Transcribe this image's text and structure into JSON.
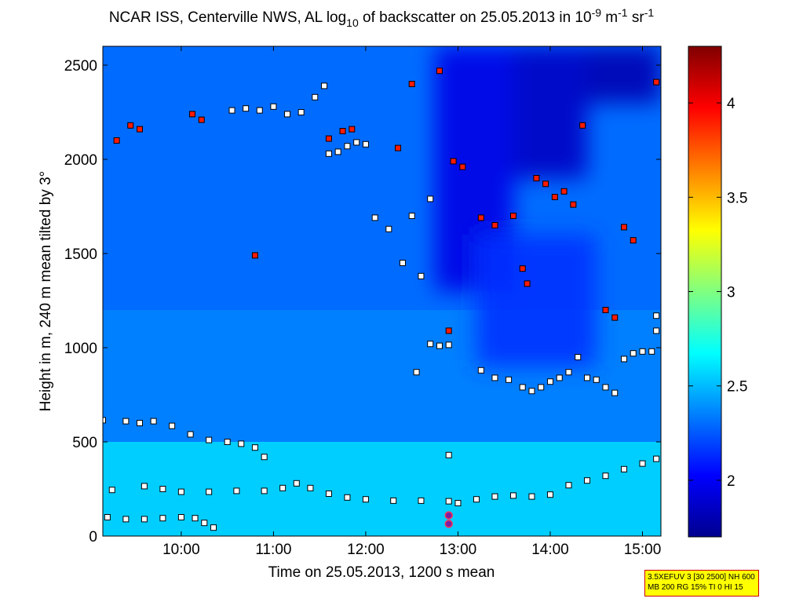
{
  "chart_data": {
    "type": "heatmap",
    "title": {
      "prefix": "NCAR ISS, Centerville NWS, AL log",
      "sub": "10",
      "mid": " of backscatter on 25.05.2013 in 10",
      "sup1": "-9",
      "mid2": " m",
      "sup2": "-1",
      "mid3": " sr",
      "sup3": "-1"
    },
    "xlabel": "Time on 25.05.2013, 1200 s mean",
    "ylabel": "Height in m, 240 m mean tilted by 3°",
    "xlim": [
      9.15,
      15.2
    ],
    "ylim": [
      0,
      2600
    ],
    "x_ticks": [
      {
        "value": 10,
        "label": "10:00"
      },
      {
        "value": 11,
        "label": "11:00"
      },
      {
        "value": 12,
        "label": "12:00"
      },
      {
        "value": 13,
        "label": "13:00"
      },
      {
        "value": 14,
        "label": "14:00"
      },
      {
        "value": 15,
        "label": "15:00"
      }
    ],
    "y_ticks": [
      {
        "value": 0,
        "label": "0"
      },
      {
        "value": 500,
        "label": "500"
      },
      {
        "value": 1000,
        "label": "1000"
      },
      {
        "value": 1500,
        "label": "1500"
      },
      {
        "value": 2000,
        "label": "2000"
      },
      {
        "value": 2500,
        "label": "2500"
      }
    ],
    "colorbar": {
      "range": [
        1.7,
        4.3
      ],
      "ticks": [
        {
          "value": 2,
          "label": "2"
        },
        {
          "value": 2.5,
          "label": "2.5"
        },
        {
          "value": 3,
          "label": "3"
        },
        {
          "value": 3.5,
          "label": "3.5"
        },
        {
          "value": 4,
          "label": "4"
        }
      ],
      "colors": [
        "#00008f",
        "#0000ff",
        "#0080ff",
        "#00ffff",
        "#80ff80",
        "#ffff00",
        "#ff8000",
        "#ff0000",
        "#800000"
      ]
    },
    "background_levels": [
      {
        "h_min": 0,
        "h_max": 500,
        "value": 2.55
      },
      {
        "h_min": 500,
        "h_max": 1200,
        "value": 2.35
      },
      {
        "h_min": 1200,
        "h_max": 2600,
        "value": 2.3
      }
    ],
    "low_backscatter_regions": [
      {
        "t_start": 12.75,
        "t_end": 13.6,
        "h_start": 1300,
        "h_end": 2600,
        "value": 1.95
      },
      {
        "t_start": 13.6,
        "t_end": 14.4,
        "h_start": 1900,
        "h_end": 2600,
        "value": 1.85
      },
      {
        "t_start": 14.4,
        "t_end": 15.2,
        "h_start": 2300,
        "h_end": 2600,
        "value": 1.8
      },
      {
        "t_start": 13.2,
        "t_end": 14.5,
        "h_start": 900,
        "h_end": 1600,
        "value": 2.15
      }
    ],
    "series": [
      {
        "name": "layer-1",
        "marker": "white-square",
        "x": [
          9.2,
          9.4,
          9.6,
          9.8,
          10.0,
          10.15,
          10.25,
          10.35
        ],
        "y": [
          100,
          90,
          90,
          95,
          100,
          95,
          70,
          45
        ]
      },
      {
        "name": "layer-2",
        "marker": "white-square",
        "x": [
          9.6,
          9.8,
          10.0,
          10.3,
          10.6,
          10.9,
          11.1,
          11.25,
          11.4,
          11.6,
          11.8,
          12.0,
          12.3,
          12.6,
          12.9,
          13.0,
          13.2,
          13.4,
          13.6,
          13.8,
          14.0,
          14.2,
          14.4,
          14.6,
          14.8,
          15.0,
          15.15
        ],
        "y": [
          265,
          250,
          235,
          235,
          240,
          240,
          255,
          280,
          255,
          225,
          205,
          195,
          188,
          188,
          185,
          175,
          195,
          210,
          215,
          210,
          220,
          270,
          295,
          320,
          355,
          385,
          410
        ]
      },
      {
        "name": "layer-3",
        "marker": "white-square",
        "x": [
          9.15,
          9.4,
          9.55,
          9.7,
          9.9,
          10.1,
          10.3,
          10.5,
          10.65,
          10.8,
          10.9
        ],
        "y": [
          615,
          610,
          600,
          610,
          585,
          540,
          510,
          500,
          490,
          470,
          420
        ]
      },
      {
        "name": "layer-4",
        "marker": "white-square",
        "x": [
          13.25,
          13.4,
          13.55,
          13.7,
          13.8,
          13.9,
          14.0,
          14.1,
          14.2,
          14.3,
          14.4,
          14.5,
          14.6,
          14.7
        ],
        "y": [
          880,
          840,
          830,
          790,
          770,
          790,
          820,
          840,
          870,
          950,
          840,
          830,
          790,
          760
        ]
      },
      {
        "name": "layer-5",
        "marker": "white-square",
        "x": [
          14.8,
          14.9,
          15.0,
          15.1
        ],
        "y": [
          940,
          970,
          980,
          980
        ]
      },
      {
        "name": "layer-6",
        "marker": "white-square",
        "x": [
          12.7,
          12.8,
          12.9
        ],
        "y": [
          1020,
          1010,
          1015
        ]
      },
      {
        "name": "layer-7",
        "marker": "white-square",
        "x": [
          10.55,
          10.7,
          10.85,
          11.0,
          11.15,
          11.3,
          11.45,
          11.55
        ],
        "y": [
          2260,
          2270,
          2260,
          2280,
          2240,
          2250,
          2330,
          2390
        ]
      },
      {
        "name": "layer-8",
        "marker": "white-square",
        "x": [
          11.6,
          11.7,
          11.8,
          11.9,
          12.0
        ],
        "y": [
          2030,
          2040,
          2070,
          2090,
          2080
        ]
      },
      {
        "name": "isolated-white",
        "marker": "white-square",
        "x": [
          9.25,
          12.1,
          12.25,
          12.4,
          12.5,
          12.55,
          12.6,
          12.7,
          12.9,
          15.15,
          15.15
        ],
        "y": [
          245,
          1690,
          1630,
          1450,
          1700,
          870,
          1380,
          1790,
          430,
          1170,
          1090
        ]
      },
      {
        "name": "cloud-edges-red",
        "marker": "red-square",
        "x": [
          9.3,
          9.45,
          9.55,
          10.12,
          10.22,
          10.8,
          11.6,
          11.75,
          11.85,
          12.35,
          12.5,
          12.8,
          12.9,
          12.95,
          13.05,
          13.25,
          13.4,
          13.6,
          13.7,
          13.75,
          13.85,
          13.95,
          14.05,
          14.15,
          14.25,
          14.35,
          14.6,
          14.7,
          14.8,
          14.9,
          15.15
        ],
        "y": [
          2100,
          2180,
          2160,
          2240,
          2210,
          1490,
          2110,
          2150,
          2160,
          2060,
          2400,
          2470,
          1090,
          1990,
          1960,
          1690,
          1650,
          1700,
          1420,
          1340,
          1900,
          1870,
          1800,
          1830,
          1760,
          2180,
          1200,
          1160,
          1640,
          1570,
          2410
        ]
      }
    ],
    "special_markers": {
      "marker": "purple-circle",
      "x": [
        12.9,
        12.9
      ],
      "y": [
        65,
        110
      ]
    }
  },
  "info_box": {
    "line1": "3.5XEFUV 3 [30 2500] NH 600",
    "line2": "MB 200 RG 15% TI 0 HI 15"
  }
}
